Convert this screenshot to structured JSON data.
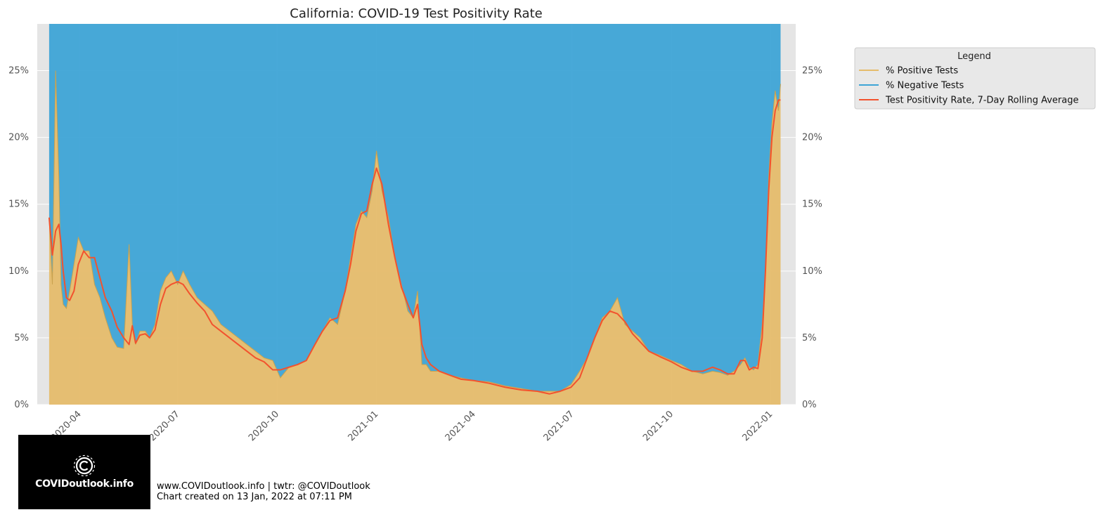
{
  "chart_data": {
    "type": "area",
    "title": "California: COVID-19 Test Positivity Rate",
    "xlabel": "",
    "ylabel": "",
    "y_ticks": [
      "0%",
      "5%",
      "10%",
      "15%",
      "20%",
      "25%"
    ],
    "x_ticks": [
      "2020-04",
      "2020-07",
      "2020-10",
      "2021-01",
      "2021-04",
      "2021-07",
      "2021-10",
      "2022-01"
    ],
    "ylim": [
      0,
      28.5
    ],
    "xlim": [
      "2020-02-22",
      "2022-01-24"
    ],
    "grid": true,
    "legend_position": "right",
    "legend_title": "Legend",
    "x": [
      "2020-03-04",
      "2020-03-07",
      "2020-03-10",
      "2020-03-13",
      "2020-03-15",
      "2020-03-17",
      "2020-03-20",
      "2020-03-23",
      "2020-03-27",
      "2020-03-31",
      "2020-04-05",
      "2020-04-10",
      "2020-04-15",
      "2020-04-20",
      "2020-04-25",
      "2020-05-01",
      "2020-05-06",
      "2020-05-12",
      "2020-05-17",
      "2020-05-20",
      "2020-05-23",
      "2020-05-27",
      "2020-06-01",
      "2020-06-05",
      "2020-06-10",
      "2020-06-15",
      "2020-06-20",
      "2020-06-25",
      "2020-07-01",
      "2020-07-06",
      "2020-07-12",
      "2020-07-19",
      "2020-07-26",
      "2020-08-02",
      "2020-08-10",
      "2020-08-18",
      "2020-08-26",
      "2020-09-03",
      "2020-09-11",
      "2020-09-19",
      "2020-09-27",
      "2020-10-04",
      "2020-10-12",
      "2020-10-20",
      "2020-10-28",
      "2020-11-05",
      "2020-11-12",
      "2020-11-19",
      "2020-11-26",
      "2020-12-03",
      "2020-12-08",
      "2020-12-13",
      "2020-12-18",
      "2020-12-23",
      "2020-12-28",
      "2021-01-01",
      "2021-01-06",
      "2021-01-12",
      "2021-01-18",
      "2021-01-24",
      "2021-01-30",
      "2021-02-04",
      "2021-02-08",
      "2021-02-12",
      "2021-02-16",
      "2021-02-20",
      "2021-02-28",
      "2021-03-10",
      "2021-03-20",
      "2021-04-01",
      "2021-04-15",
      "2021-04-30",
      "2021-05-15",
      "2021-05-30",
      "2021-06-10",
      "2021-06-20",
      "2021-06-30",
      "2021-07-08",
      "2021-07-15",
      "2021-07-22",
      "2021-07-29",
      "2021-08-05",
      "2021-08-12",
      "2021-08-19",
      "2021-08-26",
      "2021-09-02",
      "2021-09-10",
      "2021-09-20",
      "2021-10-01",
      "2021-10-10",
      "2021-10-20",
      "2021-10-30",
      "2021-11-08",
      "2021-11-15",
      "2021-11-22",
      "2021-11-28",
      "2021-12-04",
      "2021-12-08",
      "2021-12-12",
      "2021-12-16",
      "2021-12-20",
      "2021-12-24",
      "2021-12-27",
      "2021-12-30",
      "2022-01-02",
      "2022-01-05",
      "2022-01-08",
      "2022-01-10"
    ],
    "series": [
      {
        "name": "% Positive Tests",
        "color": "#e5bc6b",
        "values": [
          14.0,
          9.0,
          25.0,
          17.0,
          9.0,
          7.5,
          7.2,
          8.5,
          10.5,
          12.5,
          11.5,
          11.5,
          9.0,
          8.0,
          6.5,
          5.0,
          4.3,
          4.2,
          12.0,
          6.0,
          4.5,
          5.5,
          5.5,
          5.0,
          6.0,
          8.5,
          9.5,
          10.0,
          9.0,
          10.0,
          9.0,
          8.0,
          7.5,
          7.0,
          6.0,
          5.5,
          5.0,
          4.5,
          4.0,
          3.5,
          3.3,
          2.0,
          2.8,
          3.0,
          3.3,
          4.5,
          5.5,
          6.5,
          6.0,
          8.5,
          11.0,
          13.5,
          14.5,
          14.0,
          16.0,
          19.0,
          16.0,
          14.0,
          11.0,
          9.0,
          7.0,
          6.5,
          8.5,
          3.0,
          3.0,
          2.5,
          2.5,
          2.2,
          2.0,
          1.8,
          1.7,
          1.4,
          1.2,
          1.0,
          1.0,
          1.0,
          1.5,
          2.5,
          3.5,
          5.0,
          6.5,
          7.0,
          8.0,
          6.0,
          5.5,
          5.0,
          4.0,
          3.7,
          3.3,
          3.0,
          2.5,
          2.3,
          2.5,
          2.4,
          2.2,
          2.5,
          3.0,
          3.5,
          2.8,
          2.6,
          3.0,
          6.0,
          10.0,
          17.0,
          21.0,
          23.5,
          22.0,
          24.0
        ]
      },
      {
        "name": "% Negative Tests",
        "color": "#3ea4d6",
        "values": [
          86.0,
          91.0,
          75.0,
          83.0,
          91.0,
          92.5,
          92.8,
          91.5,
          89.5,
          87.5,
          88.5,
          88.5,
          91.0,
          92.0,
          93.5,
          95.0,
          95.7,
          95.8,
          88.0,
          94.0,
          95.5,
          94.5,
          94.5,
          95.0,
          94.0,
          91.5,
          90.5,
          90.0,
          91.0,
          90.0,
          91.0,
          92.0,
          92.5,
          93.0,
          94.0,
          94.5,
          95.0,
          95.5,
          96.0,
          96.5,
          96.7,
          98.0,
          97.2,
          97.0,
          96.7,
          95.5,
          94.5,
          93.5,
          94.0,
          91.5,
          89.0,
          86.5,
          85.5,
          86.0,
          84.0,
          81.0,
          84.0,
          86.0,
          89.0,
          91.0,
          93.0,
          93.5,
          91.5,
          97.0,
          97.0,
          97.5,
          97.5,
          97.8,
          98.0,
          98.2,
          98.3,
          98.6,
          98.8,
          99.0,
          99.0,
          99.0,
          98.5,
          97.5,
          96.5,
          95.0,
          93.5,
          93.0,
          92.0,
          94.0,
          94.5,
          95.0,
          96.0,
          96.3,
          96.7,
          97.0,
          97.5,
          97.7,
          97.5,
          97.6,
          97.8,
          97.5,
          97.0,
          96.5,
          97.2,
          97.4,
          97.0,
          94.0,
          90.0,
          83.0,
          79.0,
          76.5,
          78.0,
          76.0
        ]
      },
      {
        "name": "Test Positivity Rate, 7-Day Rolling Average",
        "color": "#f2522e",
        "values": [
          14.0,
          11.2,
          13.0,
          13.5,
          12.0,
          10.0,
          8.0,
          7.8,
          8.5,
          10.5,
          11.5,
          11.0,
          11.0,
          9.5,
          8.0,
          7.0,
          5.8,
          5.0,
          4.5,
          5.9,
          4.6,
          5.2,
          5.3,
          5.0,
          5.6,
          7.5,
          8.7,
          9.0,
          9.2,
          9.0,
          8.3,
          7.6,
          7.0,
          6.0,
          5.5,
          5.0,
          4.5,
          4.0,
          3.5,
          3.2,
          2.6,
          2.6,
          2.8,
          3.0,
          3.3,
          4.5,
          5.5,
          6.3,
          6.5,
          8.5,
          10.5,
          13.0,
          14.3,
          14.5,
          16.5,
          17.7,
          16.5,
          13.5,
          11.0,
          8.8,
          7.5,
          6.5,
          7.5,
          4.5,
          3.5,
          3.0,
          2.5,
          2.2,
          1.9,
          1.8,
          1.6,
          1.3,
          1.1,
          1.0,
          0.8,
          1.0,
          1.3,
          2.0,
          3.5,
          5.0,
          6.3,
          7.0,
          6.8,
          6.2,
          5.3,
          4.7,
          4.0,
          3.6,
          3.2,
          2.8,
          2.5,
          2.5,
          2.8,
          2.6,
          2.3,
          2.3,
          3.3,
          3.3,
          2.6,
          2.8,
          2.7,
          5.0,
          10.0,
          16.0,
          20.0,
          22.0,
          22.8,
          22.8
        ]
      }
    ]
  },
  "footer": {
    "line1": "www.COVIDoutlook.info | twtr: @COVIDoutlook",
    "line2": "Chart created on 13 Jan, 2022 at 07:11 PM"
  },
  "logo": {
    "text": "COVIDoutlook.info",
    "icon": "virus-c-icon"
  }
}
